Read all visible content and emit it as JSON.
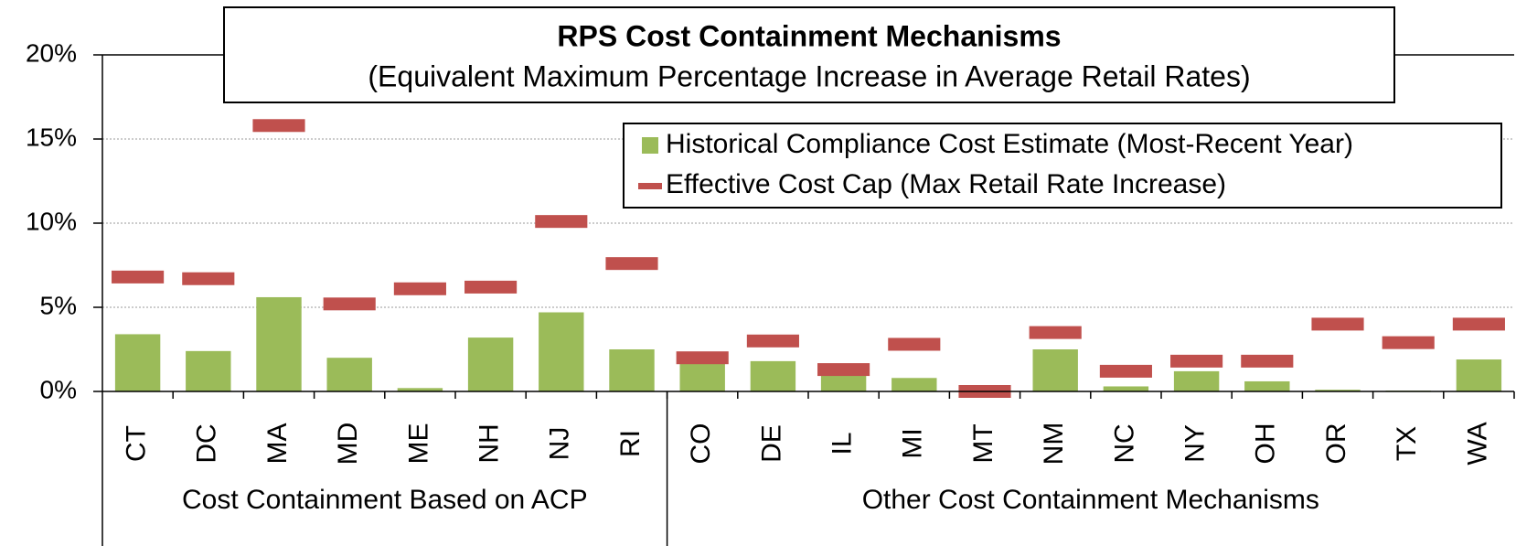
{
  "chart_data": {
    "type": "bar",
    "title": "RPS Cost Containment Mechanisms",
    "subtitle": "(Equivalent Maximum Percentage Increase in Average Retail Rates)",
    "groups": [
      {
        "name": "Cost Containment Based on ACP",
        "categories": [
          "CT",
          "DC",
          "MA",
          "MD",
          "ME",
          "NH",
          "NJ",
          "RI"
        ]
      },
      {
        "name": "Other Cost Containment Mechanisms",
        "categories": [
          "CO",
          "DE",
          "IL",
          "MI",
          "MT",
          "NM",
          "NC",
          "NY",
          "OH",
          "OR",
          "TX",
          "WA"
        ]
      }
    ],
    "series": [
      {
        "name": "Historical Compliance Cost Estimate (Most-Recent Year)",
        "color": "#9bbb59",
        "kind": "bar",
        "values": [
          3.4,
          2.4,
          5.6,
          2.0,
          0.2,
          3.2,
          4.7,
          2.5,
          1.7,
          1.8,
          1.0,
          0.8,
          0.0,
          2.5,
          0.3,
          1.2,
          0.6,
          0.1,
          0.05,
          1.9
        ]
      },
      {
        "name": "Effective Cost Cap (Max Retail Rate Increase)",
        "color": "#c0504d",
        "kind": "dash",
        "values": [
          6.8,
          6.7,
          15.8,
          5.2,
          6.1,
          6.2,
          10.1,
          7.6,
          2.0,
          3.0,
          1.3,
          2.8,
          0.0,
          3.5,
          1.2,
          1.8,
          1.8,
          4.0,
          2.9,
          4.0
        ]
      }
    ],
    "ylim": [
      0,
      20
    ],
    "yticks": [
      {
        "value": 0,
        "label": "0%"
      },
      {
        "value": 5,
        "label": "5%"
      },
      {
        "value": 10,
        "label": "10%"
      },
      {
        "value": 15,
        "label": "15%"
      },
      {
        "value": 20,
        "label": "20%"
      }
    ],
    "grid": true,
    "legend": "upper right"
  }
}
